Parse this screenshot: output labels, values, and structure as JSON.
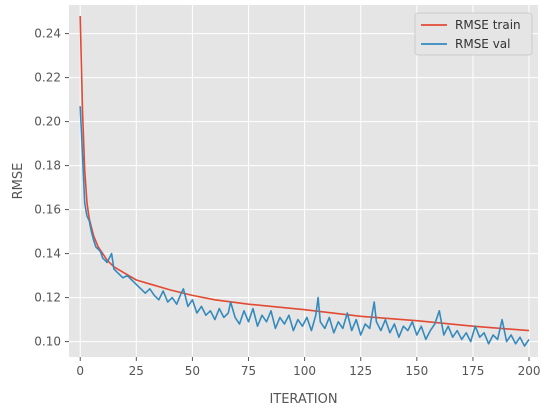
{
  "chart_data": {
    "type": "line",
    "title": "",
    "xlabel": "ITERATION",
    "ylabel": "RMSE",
    "xlim": [
      -5,
      204
    ],
    "ylim": [
      0.093,
      0.253
    ],
    "xticks": [
      0,
      25,
      50,
      75,
      100,
      125,
      150,
      175,
      200
    ],
    "yticks": [
      0.1,
      0.12,
      0.14,
      0.16,
      0.18,
      0.2,
      0.22,
      0.24
    ],
    "grid": true,
    "legend_position": "top-right",
    "series": [
      {
        "name": "RMSE train",
        "color": "#e24a33",
        "x": [
          0,
          1,
          2,
          3,
          4,
          5,
          6,
          8,
          10,
          12,
          15,
          20,
          25,
          30,
          40,
          50,
          60,
          75,
          100,
          125,
          150,
          175,
          200
        ],
        "y": [
          0.248,
          0.205,
          0.178,
          0.163,
          0.156,
          0.152,
          0.148,
          0.143,
          0.14,
          0.137,
          0.134,
          0.131,
          0.128,
          0.1265,
          0.1235,
          0.121,
          0.119,
          0.117,
          0.1145,
          0.1115,
          0.1095,
          0.107,
          0.105
        ]
      },
      {
        "name": "RMSE val",
        "color": "#348abd",
        "x": [
          0,
          1,
          2,
          3,
          4,
          5,
          6,
          7,
          8,
          9,
          10,
          11,
          12,
          13,
          14,
          15,
          17,
          19,
          21,
          23,
          25,
          27,
          29,
          31,
          33,
          35,
          37,
          39,
          41,
          43,
          45,
          46,
          48,
          50,
          52,
          54,
          56,
          58,
          60,
          62,
          64,
          66,
          67,
          69,
          71,
          73,
          75,
          77,
          79,
          81,
          83,
          85,
          87,
          89,
          91,
          93,
          95,
          97,
          99,
          101,
          103,
          105,
          106,
          107,
          109,
          111,
          113,
          115,
          117,
          119,
          121,
          123,
          125,
          127,
          129,
          131,
          132,
          134,
          136,
          138,
          140,
          142,
          144,
          146,
          148,
          150,
          152,
          154,
          156,
          158,
          160,
          162,
          164,
          166,
          168,
          170,
          172,
          174,
          176,
          178,
          180,
          182,
          184,
          186,
          188,
          190,
          192,
          194,
          196,
          198,
          200
        ],
        "y": [
          0.207,
          0.185,
          0.163,
          0.157,
          0.155,
          0.15,
          0.146,
          0.143,
          0.142,
          0.141,
          0.138,
          0.137,
          0.136,
          0.138,
          0.14,
          0.133,
          0.131,
          0.129,
          0.13,
          0.128,
          0.126,
          0.124,
          0.122,
          0.124,
          0.121,
          0.119,
          0.123,
          0.118,
          0.12,
          0.117,
          0.122,
          0.124,
          0.116,
          0.119,
          0.113,
          0.116,
          0.112,
          0.114,
          0.11,
          0.115,
          0.111,
          0.113,
          0.118,
          0.111,
          0.108,
          0.114,
          0.109,
          0.115,
          0.107,
          0.112,
          0.109,
          0.114,
          0.106,
          0.111,
          0.108,
          0.112,
          0.105,
          0.11,
          0.107,
          0.111,
          0.105,
          0.112,
          0.12,
          0.109,
          0.106,
          0.111,
          0.104,
          0.109,
          0.106,
          0.113,
          0.105,
          0.11,
          0.103,
          0.108,
          0.106,
          0.118,
          0.109,
          0.105,
          0.11,
          0.104,
          0.108,
          0.102,
          0.107,
          0.105,
          0.109,
          0.103,
          0.107,
          0.101,
          0.105,
          0.108,
          0.114,
          0.103,
          0.107,
          0.102,
          0.105,
          0.101,
          0.104,
          0.1,
          0.107,
          0.102,
          0.104,
          0.099,
          0.103,
          0.101,
          0.11,
          0.1,
          0.103,
          0.099,
          0.102,
          0.098,
          0.101
        ]
      }
    ]
  }
}
